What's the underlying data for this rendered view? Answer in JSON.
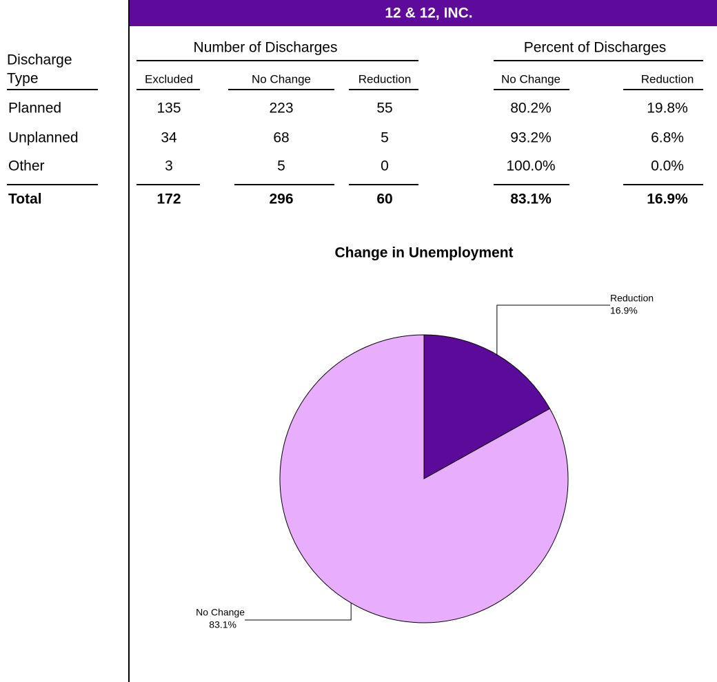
{
  "header": {
    "title": "12 & 12, INC."
  },
  "table": {
    "row_header": [
      "Discharge",
      "Type"
    ],
    "groups": [
      "Number of Discharges",
      "Percent of Discharges"
    ],
    "columns": [
      "Excluded",
      "No Change",
      "Reduction",
      "No Change",
      "Reduction"
    ],
    "rows": [
      [
        "Planned",
        "135",
        "223",
        "55",
        "80.2%",
        "19.8%"
      ],
      [
        "Unplanned",
        "34",
        "68",
        "5",
        "93.2%",
        "6.8%"
      ],
      [
        "Other",
        "3",
        "5",
        "0",
        "100.0%",
        "0.0%"
      ]
    ],
    "total": [
      "Total",
      "172",
      "296",
      "60",
      "83.1%",
      "16.9%"
    ]
  },
  "chart_data": {
    "type": "pie",
    "title": "Change in Unemployment",
    "categories": [
      "Reduction",
      "No Change"
    ],
    "values": [
      16.9,
      83.1
    ],
    "value_labels": [
      "16.9%",
      "83.1%"
    ],
    "colors": [
      "#5c0a99",
      "#e8adfd"
    ]
  }
}
